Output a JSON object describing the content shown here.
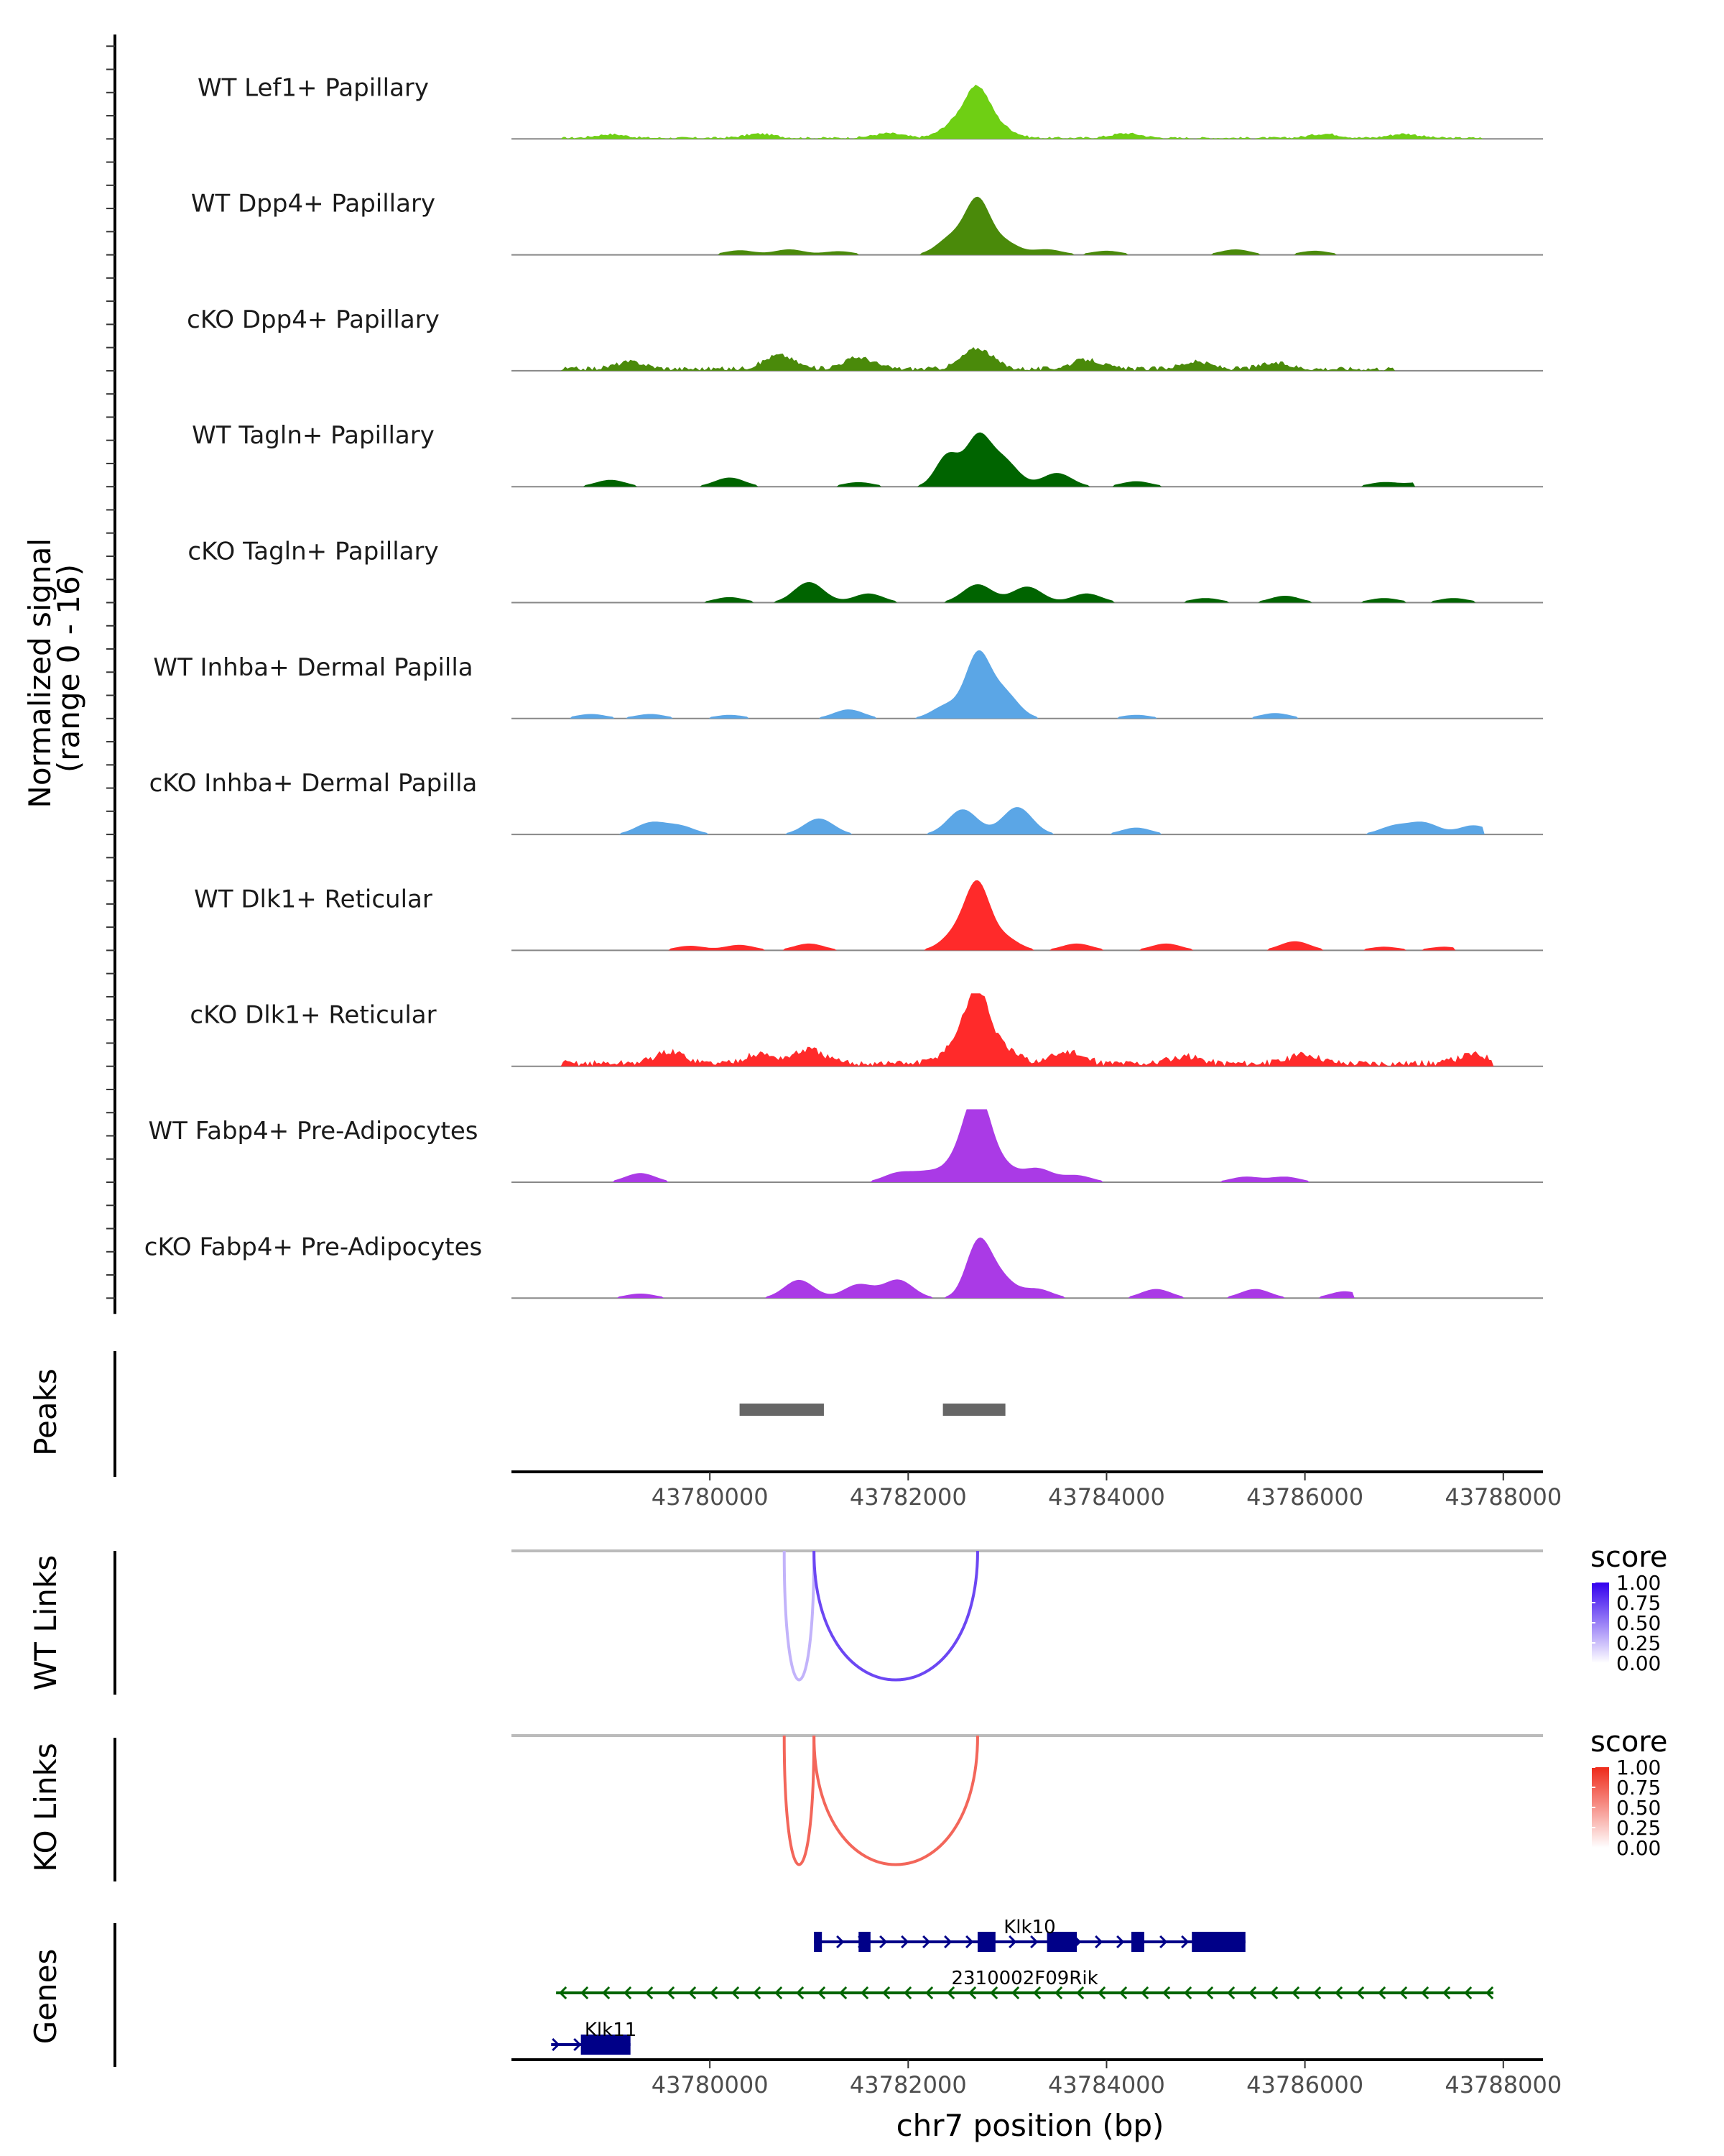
{
  "chart_data": {
    "type": "area",
    "title": "",
    "xlabel": "chr7 position (bp)",
    "ylabel": "Normalized signal\n(range 0 - 16)",
    "ylabel_lines": [
      "Normalized signal",
      "(range 0 - 16)"
    ],
    "ylim": [
      0,
      16
    ],
    "xlim": [
      43778000,
      43788400
    ],
    "x_ticks": [
      43780000,
      43782000,
      43784000,
      43786000,
      43788000
    ],
    "x_tick_labels": [
      "43780000",
      "43782000",
      "43784000",
      "43786000",
      "43788000"
    ],
    "coverage_tracks": [
      {
        "name": "WT Lef1+ Papillary",
        "color": "#6FCF14",
        "noise": 0.06,
        "span": [
          43778500,
          43787800
        ],
        "peaks": [
          [
            43782700,
            9
          ],
          [
            43782500,
            3.5
          ],
          [
            43782900,
            2.5
          ],
          [
            43779000,
            0.8
          ],
          [
            43780500,
            0.9
          ],
          [
            43781800,
            1
          ],
          [
            43784200,
            1
          ],
          [
            43786200,
            0.9
          ],
          [
            43787000,
            0.9
          ]
        ]
      },
      {
        "name": "WT Dpp4+ Papillary",
        "color": "#4A8A0A",
        "noise": 0.0,
        "span": [
          43780000,
          43787000
        ],
        "peaks": [
          [
            43782700,
            11
          ],
          [
            43782450,
            4
          ],
          [
            43782950,
            3
          ],
          [
            43780300,
            1
          ],
          [
            43780800,
            1.2
          ],
          [
            43781300,
            0.8
          ],
          [
            43783400,
            1.2
          ],
          [
            43784000,
            0.9
          ],
          [
            43785300,
            1.2
          ],
          [
            43786100,
            0.9
          ]
        ]
      },
      {
        "name": "cKO Dpp4+ Papillary",
        "color": "#4A8A0A",
        "noise": 0.12,
        "span": [
          43778500,
          43786900
        ],
        "peaks": [
          [
            43782700,
            4.5
          ],
          [
            43780700,
            3
          ],
          [
            43781500,
            2.5
          ],
          [
            43779200,
            1.5
          ],
          [
            43783800,
            2
          ],
          [
            43784900,
            1.5
          ],
          [
            43785700,
            1.2
          ],
          [
            43787500,
            0.8
          ]
        ]
      },
      {
        "name": "WT Tagln+ Papillary",
        "color": "#006400",
        "noise": 0.0,
        "span": [
          43778600,
          43787100
        ],
        "peaks": [
          [
            43782700,
            10
          ],
          [
            43782400,
            7
          ],
          [
            43782950,
            6
          ],
          [
            43783500,
            3
          ],
          [
            43780200,
            2
          ],
          [
            43779000,
            1.5
          ],
          [
            43781500,
            1
          ],
          [
            43784300,
            1.2
          ],
          [
            43786800,
            1
          ],
          [
            43787200,
            1
          ]
        ]
      },
      {
        "name": "cKO Tagln+ Papillary",
        "color": "#006400",
        "noise": 0.0,
        "span": [
          43779800,
          43787800
        ],
        "peaks": [
          [
            43781000,
            4.5
          ],
          [
            43782700,
            4
          ],
          [
            43783200,
            3.5
          ],
          [
            43783800,
            2
          ],
          [
            43781600,
            2
          ],
          [
            43780200,
            1.2
          ],
          [
            43785000,
            1
          ],
          [
            43785800,
            1.5
          ],
          [
            43786800,
            1
          ],
          [
            43787500,
            1
          ]
        ]
      },
      {
        "name": "WT Inhba+ Dermal Papilla",
        "color": "#5BA6E6",
        "noise": 0.0,
        "span": [
          43778600,
          43786400
        ],
        "peaks": [
          [
            43782700,
            13
          ],
          [
            43782950,
            6
          ],
          [
            43782400,
            3
          ],
          [
            43781400,
            2
          ],
          [
            43779400,
            1
          ],
          [
            43778800,
            1
          ],
          [
            43784300,
            0.8
          ],
          [
            43785700,
            1.2
          ],
          [
            43780200,
            0.8
          ]
        ]
      },
      {
        "name": "cKO Inhba+ Dermal Papilla",
        "color": "#5BA6E6",
        "noise": 0.0,
        "span": [
          43779000,
          43787800
        ],
        "peaks": [
          [
            43782550,
            5.5
          ],
          [
            43783100,
            6
          ],
          [
            43781100,
            3.5
          ],
          [
            43779400,
            2.5
          ],
          [
            43779700,
            1.8
          ],
          [
            43784300,
            1.5
          ],
          [
            43786900,
            1.8
          ],
          [
            43787200,
            2.5
          ],
          [
            43787700,
            2
          ]
        ]
      },
      {
        "name": "WT Dlk1+ Reticular",
        "color": "#FF2A2A",
        "noise": 0.0,
        "span": [
          43779000,
          43787500
        ],
        "peaks": [
          [
            43782700,
            13
          ],
          [
            43782500,
            4
          ],
          [
            43782950,
            3
          ],
          [
            43781000,
            1.5
          ],
          [
            43780300,
            1.2
          ],
          [
            43783700,
            1.5
          ],
          [
            43784600,
            1.5
          ],
          [
            43785900,
            2
          ],
          [
            43779800,
            1
          ],
          [
            43786800,
            0.8
          ],
          [
            43787400,
            0.8
          ]
        ]
      },
      {
        "name": "cKO Dlk1+ Reticular",
        "color": "#FF2A2A",
        "noise": 0.18,
        "span": [
          43778500,
          43787900
        ],
        "peaks": [
          [
            43782700,
            14
          ],
          [
            43782500,
            4
          ],
          [
            43782950,
            3
          ],
          [
            43781000,
            3
          ],
          [
            43779600,
            2.5
          ],
          [
            43780500,
            2
          ],
          [
            43783600,
            2.5
          ],
          [
            43784800,
            1.5
          ],
          [
            43786000,
            2
          ],
          [
            43787700,
            2
          ]
        ]
      },
      {
        "name": "WT Fabp4+ Pre-Adipocytes",
        "color": "#AA3AE6",
        "noise": 0.0,
        "span": [
          43779000,
          43786200
        ],
        "peaks": [
          [
            43782700,
            15
          ],
          [
            43782550,
            6
          ],
          [
            43782900,
            4.5
          ],
          [
            43783300,
            3
          ],
          [
            43779300,
            2
          ],
          [
            43781900,
            2
          ],
          [
            43782200,
            2
          ],
          [
            43783700,
            1.5
          ],
          [
            43785400,
            1.2
          ],
          [
            43785800,
            1.2
          ]
        ]
      },
      {
        "name": "cKO Fabp4+ Pre-Adipocytes",
        "color": "#AA3AE6",
        "noise": 0.0,
        "span": [
          43778600,
          43786500
        ],
        "peaks": [
          [
            43782700,
            11
          ],
          [
            43782900,
            5
          ],
          [
            43781900,
            4
          ],
          [
            43780900,
            4
          ],
          [
            43781500,
            3
          ],
          [
            43783300,
            2
          ],
          [
            43784500,
            2
          ],
          [
            43785500,
            2
          ],
          [
            43779300,
            1
          ],
          [
            43786400,
            1.5
          ]
        ]
      }
    ],
    "peaks_track": {
      "label": "Peaks",
      "color": "#666666",
      "regions": [
        [
          43780300,
          43781150
        ],
        [
          43782350,
          43782980
        ]
      ]
    },
    "link_tracks": [
      {
        "label": "WT Links",
        "legend_title": "score",
        "scale_colors": [
          "#FFFFFF",
          "#3300EE"
        ],
        "links": [
          {
            "start": 43780750,
            "end": 43781050,
            "score": 0.3
          },
          {
            "start": 43781050,
            "end": 43782700,
            "score": 0.72
          }
        ]
      },
      {
        "label": "KO Links",
        "legend_title": "score",
        "scale_colors": [
          "#FFFFFF",
          "#EE2A1A"
        ],
        "links": [
          {
            "start": 43780750,
            "end": 43781050,
            "score": 0.72
          },
          {
            "start": 43781050,
            "end": 43782700,
            "score": 0.72
          }
        ]
      }
    ],
    "legend_ticks": [
      "1.00",
      "0.75",
      "0.50",
      "0.25",
      "0.00"
    ],
    "genes": [
      {
        "name": "Klk10",
        "strand": "+",
        "color": "#000088",
        "start": 43781050,
        "end": 43785400,
        "exons": [
          [
            43781050,
            43781130
          ],
          [
            43781500,
            43781620
          ],
          [
            43782700,
            43782880
          ],
          [
            43783400,
            43783700
          ],
          [
            43784250,
            43784380
          ],
          [
            43784860,
            43785400
          ]
        ]
      },
      {
        "name": "2310002F09Rik",
        "strand": "-",
        "color": "#006400",
        "start": 43778450,
        "end": 43787900,
        "exons": []
      },
      {
        "name": "Klk11",
        "strand": "+",
        "color": "#000088",
        "start": 43778400,
        "end": 43779200,
        "exons": [
          [
            43778700,
            43779200
          ]
        ]
      }
    ],
    "genes_label": "Genes"
  }
}
